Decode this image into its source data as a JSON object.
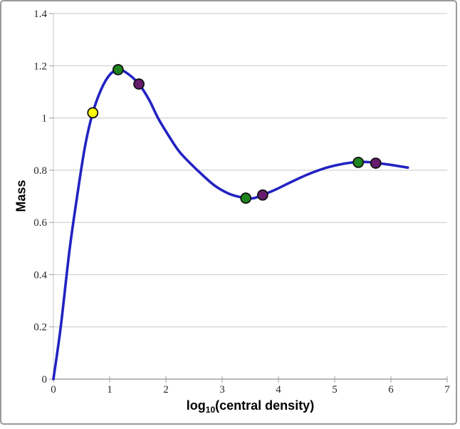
{
  "labels": {
    "ylabel": "Mass",
    "xlabel_prefix": "log",
    "xlabel_sub": "10",
    "xlabel_rest": "(central density)"
  },
  "colors": {
    "curve": "#2222c2",
    "gridline": "#c8c8c8",
    "y_axis": "#c8c8c8",
    "x_axis": "#a0a0a0",
    "tick": "#9f9f9f",
    "marker_outline": "#111111",
    "frame_border": "#9a9a9a",
    "marker_yellow": "#ffff00",
    "marker_green": "#1e8420",
    "marker_purple": "#661b6e"
  },
  "chart_data": {
    "type": "line",
    "xlabel": "log10(central density)",
    "ylabel": "Mass",
    "xlim": [
      0,
      7
    ],
    "ylim": [
      0,
      1.4
    ],
    "x_ticks": [
      0,
      1,
      2,
      3,
      4,
      5,
      6,
      7
    ],
    "x_tick_labels": [
      "0",
      "1",
      "2",
      "3",
      "4",
      "5",
      "6",
      "7"
    ],
    "y_ticks": [
      0,
      0.2,
      0.4,
      0.6,
      0.8,
      1.0,
      1.2,
      1.4
    ],
    "y_tick_labels": [
      "0",
      "0.2",
      "0.4",
      "0.6",
      "0.8",
      "1",
      "1.2",
      "1.4"
    ],
    "grid": "horizontal-only",
    "legend": "none",
    "series": [
      {
        "name": "mass-vs-central-density-curve",
        "color": "#2222c2",
        "points": [
          [
            0,
            0
          ],
          [
            0.13,
            0.2
          ],
          [
            0.29,
            0.5
          ],
          [
            0.45,
            0.74
          ],
          [
            0.57,
            0.9
          ],
          [
            0.7,
            1.02
          ],
          [
            0.85,
            1.11
          ],
          [
            1.0,
            1.165
          ],
          [
            1.15,
            1.185
          ],
          [
            1.3,
            1.173
          ],
          [
            1.52,
            1.13
          ],
          [
            1.7,
            1.07
          ],
          [
            1.86,
            1.0
          ],
          [
            2.05,
            0.932
          ],
          [
            2.25,
            0.868
          ],
          [
            2.56,
            0.8
          ],
          [
            2.85,
            0.744
          ],
          [
            3.1,
            0.712
          ],
          [
            3.3,
            0.698
          ],
          [
            3.42,
            0.693
          ],
          [
            3.56,
            0.693
          ],
          [
            3.72,
            0.705
          ],
          [
            3.95,
            0.726
          ],
          [
            4.2,
            0.752
          ],
          [
            4.5,
            0.782
          ],
          [
            4.8,
            0.806
          ],
          [
            5.05,
            0.82
          ],
          [
            5.25,
            0.828
          ],
          [
            5.45,
            0.832
          ],
          [
            5.6,
            0.831
          ],
          [
            5.73,
            0.828
          ],
          [
            5.95,
            0.822
          ],
          [
            6.1,
            0.817
          ],
          [
            6.3,
            0.81
          ]
        ]
      }
    ],
    "markers": [
      {
        "x": 0.7,
        "y": 1.02,
        "color": "#ffff00",
        "name": "yellow-point"
      },
      {
        "x": 1.15,
        "y": 1.185,
        "color": "#1e8420",
        "name": "green-point-1"
      },
      {
        "x": 1.52,
        "y": 1.13,
        "color": "#661b6e",
        "name": "purple-point-1"
      },
      {
        "x": 3.42,
        "y": 0.693,
        "color": "#1e8420",
        "name": "green-point-2"
      },
      {
        "x": 3.72,
        "y": 0.705,
        "color": "#661b6e",
        "name": "purple-point-2"
      },
      {
        "x": 5.42,
        "y": 0.83,
        "color": "#1e8420",
        "name": "green-point-3"
      },
      {
        "x": 5.73,
        "y": 0.827,
        "color": "#661b6e",
        "name": "purple-point-3"
      }
    ]
  }
}
